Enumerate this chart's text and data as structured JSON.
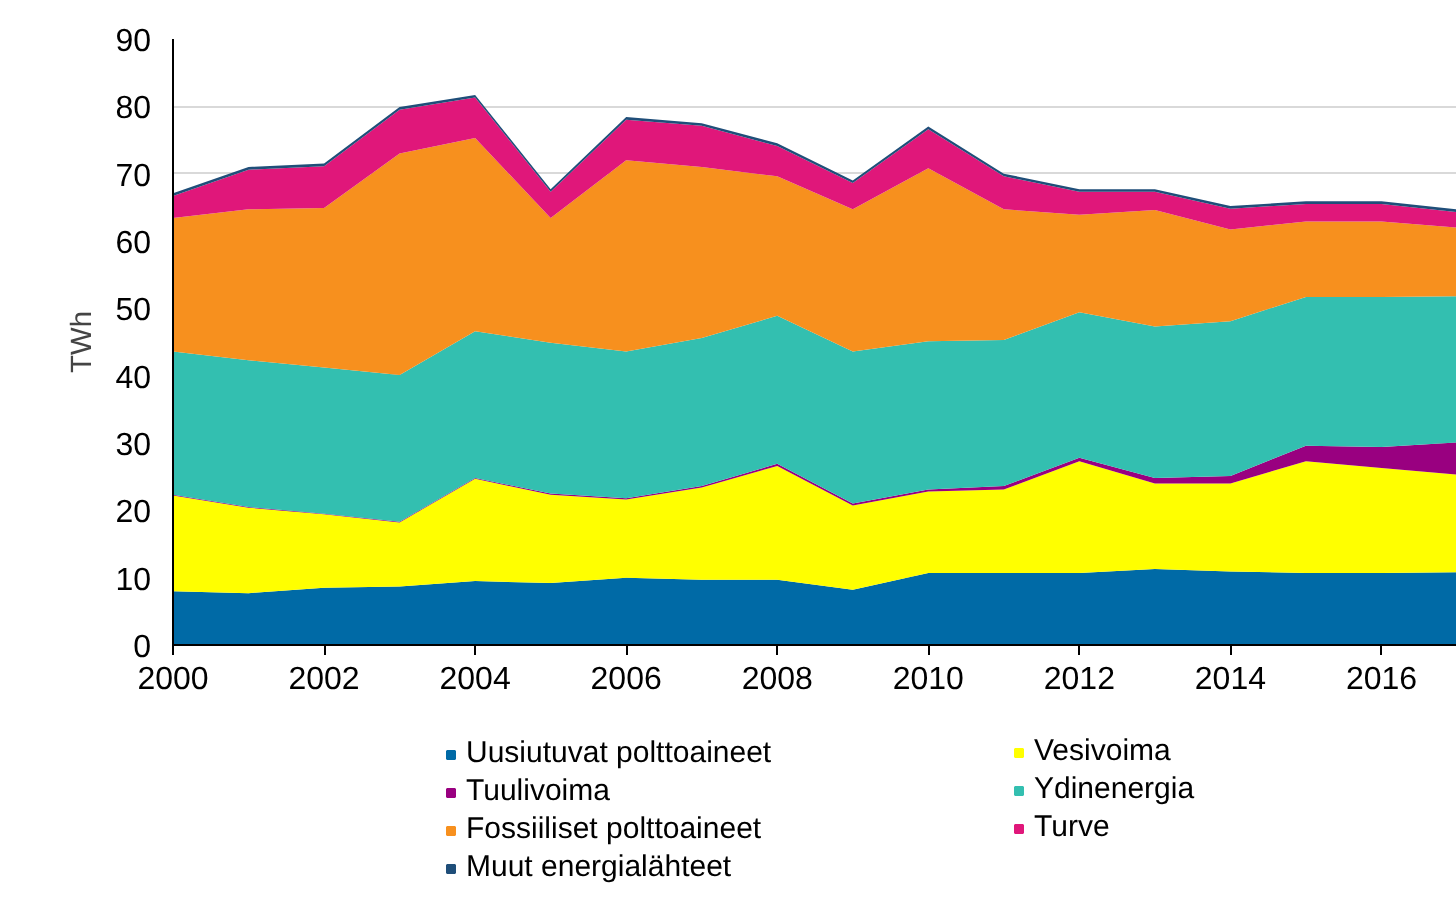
{
  "chart_data": {
    "type": "area",
    "stacked": true,
    "ylabel": "TWh",
    "x": [
      2000,
      2001,
      2002,
      2003,
      2004,
      2005,
      2006,
      2007,
      2008,
      2009,
      2010,
      2011,
      2012,
      2013,
      2014,
      2015,
      2016,
      2017
    ],
    "xlim": [
      2000,
      2017
    ],
    "xticks": [
      2000,
      2002,
      2004,
      2006,
      2008,
      2010,
      2012,
      2014,
      2016
    ],
    "ylim": [
      0,
      90
    ],
    "yticks": [
      0,
      10,
      20,
      30,
      40,
      50,
      60,
      70,
      80,
      90
    ],
    "grid": "y",
    "legend": "bottom",
    "series": [
      {
        "name": "Uusiutuvat polttoaineet",
        "color": "#006aa6",
        "values": [
          8.0,
          7.7,
          8.5,
          8.7,
          9.5,
          9.2,
          10.0,
          9.7,
          9.7,
          8.2,
          10.7,
          10.7,
          10.7,
          11.3,
          10.9,
          10.7,
          10.7,
          10.8
        ]
      },
      {
        "name": "Vesivoima",
        "color": "#ffff00",
        "values": [
          14.2,
          12.7,
          10.9,
          9.5,
          15.2,
          13.1,
          11.6,
          13.7,
          16.9,
          12.5,
          12.1,
          12.4,
          16.6,
          12.7,
          13.1,
          16.6,
          15.6,
          14.5
        ]
      },
      {
        "name": "Tuulivoima",
        "color": "#990080",
        "values": [
          0.1,
          0.1,
          0.1,
          0.1,
          0.1,
          0.2,
          0.2,
          0.2,
          0.3,
          0.3,
          0.3,
          0.5,
          0.5,
          0.8,
          1.1,
          2.3,
          3.1,
          4.8
        ]
      },
      {
        "name": "Ydinenergia",
        "color": "#33bfb0",
        "values": [
          21.3,
          21.8,
          21.7,
          21.8,
          21.8,
          22.4,
          21.8,
          22.0,
          22.0,
          22.6,
          22.0,
          21.7,
          21.6,
          22.5,
          23.0,
          22.1,
          22.3,
          21.7
        ]
      },
      {
        "name": "Fossiiliset polttoaineet",
        "color": "#f7901e",
        "values": [
          19.8,
          22.4,
          23.7,
          32.9,
          28.7,
          18.5,
          28.4,
          25.4,
          20.7,
          21.1,
          25.7,
          19.4,
          14.5,
          17.3,
          13.6,
          11.2,
          11.2,
          10.2
        ]
      },
      {
        "name": "Turve",
        "color": "#e0177a",
        "values": [
          3.3,
          5.9,
          6.2,
          6.5,
          6.0,
          3.9,
          6.0,
          6.1,
          4.5,
          3.9,
          5.8,
          4.9,
          3.4,
          2.7,
          3.1,
          2.6,
          2.6,
          2.3
        ]
      },
      {
        "name": "Muut energialähteet",
        "color": "#1f4e79",
        "values": [
          0.4,
          0.4,
          0.4,
          0.4,
          0.4,
          0.4,
          0.4,
          0.4,
          0.4,
          0.4,
          0.4,
          0.4,
          0.4,
          0.4,
          0.4,
          0.4,
          0.4,
          0.4
        ]
      }
    ]
  }
}
